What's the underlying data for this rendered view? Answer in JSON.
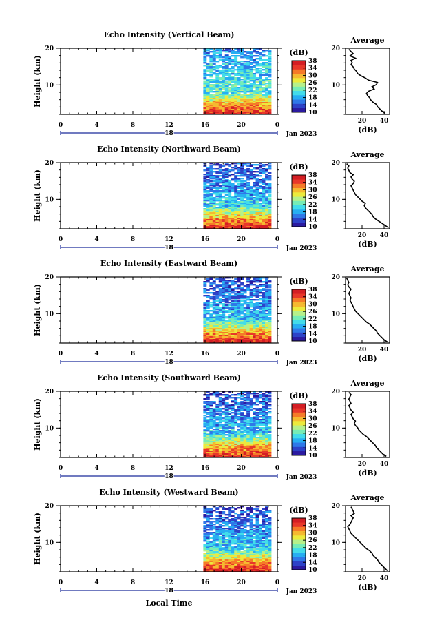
{
  "figure": {
    "bottom_xlabel": "Local Time"
  },
  "colormap": [
    "#2b1aa0",
    "#2d42c8",
    "#2f78e8",
    "#27aef2",
    "#42dcea",
    "#76ecb6",
    "#b6f08a",
    "#ecea3c",
    "#f5b930",
    "#f57a28",
    "#e8372a",
    "#d41e24"
  ],
  "chart_data": [
    {
      "type": "heatmap",
      "title": "Echo Intensity (Vertical Beam)",
      "ylabel": "Height (km)",
      "x_ticks": [
        "0",
        "4",
        "8",
        "12",
        "16",
        "20",
        "0"
      ],
      "xlim": [
        0,
        24
      ],
      "ylim": [
        2,
        20
      ],
      "y_ticks": [
        "10",
        "20"
      ],
      "date_label": "Jan 2023",
      "day_label": "18",
      "data_start_hour": 15.8,
      "colorbar": {
        "label": "(dB)",
        "ticks": [
          "38",
          "34",
          "30",
          "26",
          "22",
          "18",
          "14",
          "10"
        ],
        "range": [
          10,
          38
        ]
      },
      "profile": {
        "type": "line",
        "title": "Average",
        "xlabel": "(dB)",
        "x_ticks": [
          "20",
          "40"
        ],
        "xlim": [
          5,
          45
        ],
        "y_ticks": [
          "10",
          "20"
        ],
        "ylim": [
          2,
          20
        ],
        "x": [
          41,
          38,
          36,
          34,
          33,
          30,
          28,
          27,
          25,
          24,
          26,
          31,
          29,
          33,
          34,
          26,
          23,
          19,
          16,
          15,
          13,
          12,
          10,
          11,
          10,
          14,
          9,
          12,
          10,
          8
        ],
        "y": [
          2.3,
          2.9,
          3.5,
          4.1,
          4.7,
          5.3,
          5.9,
          6.5,
          7.1,
          7.7,
          8.3,
          8.9,
          9.5,
          10.1,
          10.7,
          11.3,
          11.9,
          12.5,
          13.1,
          13.7,
          14.3,
          14.9,
          15.5,
          16.1,
          16.7,
          17.3,
          17.9,
          18.5,
          19.1,
          19.7
        ]
      }
    },
    {
      "type": "heatmap",
      "title": "Echo Intensity (Northward Beam)",
      "ylabel": "Height (km)",
      "x_ticks": [
        "0",
        "4",
        "8",
        "12",
        "16",
        "20",
        "0"
      ],
      "xlim": [
        0,
        24
      ],
      "ylim": [
        2,
        20
      ],
      "y_ticks": [
        "10",
        "20"
      ],
      "date_label": "Jan 2023",
      "day_label": "18",
      "data_start_hour": 15.8,
      "colorbar": {
        "label": "(dB)",
        "ticks": [
          "38",
          "34",
          "30",
          "26",
          "22",
          "18",
          "14",
          "10"
        ],
        "range": [
          10,
          38
        ]
      },
      "profile": {
        "type": "line",
        "title": "Average",
        "xlabel": "(dB)",
        "x_ticks": [
          "20",
          "40"
        ],
        "xlim": [
          5,
          45
        ],
        "y_ticks": [
          "10",
          "20"
        ],
        "ylim": [
          2,
          20
        ],
        "x": [
          44,
          41,
          38,
          35,
          32,
          30,
          29,
          27,
          25,
          23,
          22,
          23,
          20,
          18,
          16,
          14,
          13,
          12,
          11,
          10,
          12,
          13,
          11,
          10,
          12,
          9,
          8,
          7,
          8,
          6
        ],
        "y": [
          2.3,
          2.9,
          3.5,
          4.1,
          4.7,
          5.3,
          5.9,
          6.5,
          7.1,
          7.7,
          8.3,
          8.9,
          9.5,
          10.1,
          10.7,
          11.3,
          11.9,
          12.5,
          13.1,
          13.7,
          14.3,
          14.9,
          15.5,
          16.1,
          16.7,
          17.3,
          17.9,
          18.5,
          19.1,
          19.7
        ]
      }
    },
    {
      "type": "heatmap",
      "title": "Echo Intensity (Eastward Beam)",
      "ylabel": "Height (km)",
      "x_ticks": [
        "0",
        "4",
        "8",
        "12",
        "16",
        "20",
        "0"
      ],
      "xlim": [
        0,
        24
      ],
      "ylim": [
        2,
        20
      ],
      "y_ticks": [
        "10",
        "20"
      ],
      "date_label": "Jan 2023",
      "day_label": "18",
      "data_start_hour": 15.8,
      "colorbar": {
        "label": "(dB)",
        "ticks": [
          "38",
          "34",
          "30",
          "26",
          "22",
          "18",
          "14",
          "10"
        ],
        "range": [
          10,
          38
        ]
      },
      "profile": {
        "type": "line",
        "title": "Average",
        "xlabel": "(dB)",
        "x_ticks": [
          "20",
          "40"
        ],
        "xlim": [
          5,
          45
        ],
        "y_ticks": [
          "10",
          "20"
        ],
        "ylim": [
          2,
          20
        ],
        "x": [
          43,
          40,
          38,
          36,
          34,
          33,
          31,
          29,
          27,
          24,
          22,
          20,
          18,
          16,
          14,
          13,
          12,
          11,
          10,
          9,
          10,
          9,
          8,
          9,
          10,
          8,
          7,
          8,
          7,
          6
        ],
        "y": [
          2.3,
          2.9,
          3.5,
          4.1,
          4.7,
          5.3,
          5.9,
          6.5,
          7.1,
          7.7,
          8.3,
          8.9,
          9.5,
          10.1,
          10.7,
          11.3,
          11.9,
          12.5,
          13.1,
          13.7,
          14.3,
          14.9,
          15.5,
          16.1,
          16.7,
          17.3,
          17.9,
          18.5,
          19.1,
          19.7
        ]
      }
    },
    {
      "type": "heatmap",
      "title": "Echo Intensity (Southward Beam)",
      "ylabel": "Height (km)",
      "x_ticks": [
        "0",
        "4",
        "8",
        "12",
        "16",
        "20",
        "0"
      ],
      "xlim": [
        0,
        24
      ],
      "ylim": [
        2,
        20
      ],
      "y_ticks": [
        "10",
        "20"
      ],
      "date_label": "Jan 2023",
      "day_label": "18",
      "data_start_hour": 15.8,
      "colorbar": {
        "label": "(dB)",
        "ticks": [
          "38",
          "34",
          "30",
          "26",
          "22",
          "18",
          "14",
          "10"
        ],
        "range": [
          10,
          38
        ]
      },
      "profile": {
        "type": "line",
        "title": "Average",
        "xlabel": "(dB)",
        "x_ticks": [
          "20",
          "40"
        ],
        "xlim": [
          5,
          45
        ],
        "y_ticks": [
          "10",
          "20"
        ],
        "ylim": [
          2,
          20
        ],
        "x": [
          42,
          39,
          37,
          35,
          33,
          32,
          30,
          28,
          26,
          24,
          21,
          19,
          17,
          16,
          14,
          13,
          14,
          12,
          11,
          10,
          12,
          10,
          9,
          8,
          10,
          9,
          8,
          9,
          10,
          8
        ],
        "y": [
          2.3,
          2.9,
          3.5,
          4.1,
          4.7,
          5.3,
          5.9,
          6.5,
          7.1,
          7.7,
          8.3,
          8.9,
          9.5,
          10.1,
          10.7,
          11.3,
          11.9,
          12.5,
          13.1,
          13.7,
          14.3,
          14.9,
          15.5,
          16.1,
          16.7,
          17.3,
          17.9,
          18.5,
          19.1,
          19.7
        ]
      }
    },
    {
      "type": "heatmap",
      "title": "Echo Intensity (Westward Beam)",
      "ylabel": "Height (km)",
      "x_ticks": [
        "0",
        "4",
        "8",
        "12",
        "16",
        "20",
        "0"
      ],
      "xlim": [
        0,
        24
      ],
      "ylim": [
        2,
        20
      ],
      "y_ticks": [
        "10",
        "20"
      ],
      "date_label": "Jan 2023",
      "day_label": "18",
      "data_start_hour": 15.8,
      "colorbar": {
        "label": "(dB)",
        "ticks": [
          "38",
          "34",
          "30",
          "26",
          "22",
          "18",
          "14",
          "10"
        ],
        "range": [
          10,
          38
        ]
      },
      "profile": {
        "type": "line",
        "title": "Average",
        "xlabel": "(dB)",
        "x_ticks": [
          "20",
          "40"
        ],
        "xlim": [
          5,
          45
        ],
        "y_ticks": [
          "10",
          "20"
        ],
        "ylim": [
          2,
          20
        ],
        "x": [
          43,
          41,
          39,
          37,
          35,
          34,
          32,
          30,
          29,
          27,
          24,
          22,
          20,
          18,
          16,
          14,
          12,
          10,
          9,
          8,
          7,
          9,
          10,
          11,
          12,
          10,
          13,
          12,
          11,
          10
        ],
        "y": [
          2.3,
          2.9,
          3.5,
          4.1,
          4.7,
          5.3,
          5.9,
          6.5,
          7.1,
          7.7,
          8.3,
          8.9,
          9.5,
          10.1,
          10.7,
          11.3,
          11.9,
          12.5,
          13.1,
          13.7,
          14.3,
          14.9,
          15.5,
          16.1,
          16.7,
          17.3,
          17.9,
          18.5,
          19.1,
          19.7
        ]
      }
    }
  ]
}
